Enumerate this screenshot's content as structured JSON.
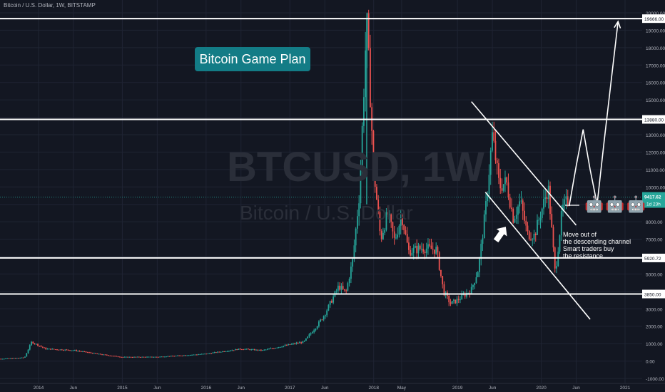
{
  "header": {
    "symbol_title": "Bitcoin / U.S. Dollar, 1W, BITSTAMP"
  },
  "annotation": {
    "game_plan_label": "Bitcoin Game Plan",
    "note_lines": [
      "Move out of",
      "the descending channel",
      "Smart traders buy",
      "the resistance"
    ]
  },
  "watermark": {
    "ticker": "BTCUSD, 1W",
    "name": "Bitcoin / U.S. Dollar"
  },
  "price_labels": {
    "current_price": "9417.62",
    "countdown": "1d 23h"
  },
  "colors": {
    "background": "#131722",
    "up": "#26a69a",
    "down": "#ef5350",
    "lines": "#ffffff",
    "grid": "#1f2433",
    "label_teal": "#137c86"
  },
  "icons": [
    "android-icon",
    "android-icon",
    "android-icon"
  ],
  "chart_data": {
    "type": "candlestick",
    "title": "Bitcoin / U.S. Dollar, 1W, BITSTAMP",
    "ylim": [
      -1000,
      20000
    ],
    "y_ticks": [
      -1000,
      0,
      1000,
      2000,
      3000,
      4000,
      5000,
      6000,
      7000,
      8000,
      9000,
      10000,
      11000,
      12000,
      13000,
      14000,
      15000,
      16000,
      17000,
      18000,
      19000,
      20000
    ],
    "y_tick_labels": [
      "-1000.00",
      "0.00",
      "1000.00",
      "2000.00",
      "3000.00",
      "4000.00",
      "5000.00",
      "6000.00",
      "7000.00",
      "8000.00",
      "9000.00",
      "10000.00",
      "11000.00",
      "12000.00",
      "13000.00",
      "14000.00",
      "15000.00",
      "16000.00",
      "17000.00",
      "18000.00",
      "19000.00",
      "20000.00"
    ],
    "x_ticks": [
      "2014",
      "Jun",
      "2015",
      "Jun",
      "2016",
      "Jun",
      "2017",
      "Jun",
      "2018",
      "May",
      "2019",
      "Jun",
      "2020",
      "Jun",
      "2021"
    ],
    "x_tick_dates": [
      "2014-01",
      "2014-06",
      "2015-01",
      "2015-06",
      "2016-01",
      "2016-06",
      "2017-01",
      "2017-06",
      "2018-01",
      "2018-05",
      "2019-01",
      "2019-06",
      "2020-01",
      "2020-06",
      "2021-01"
    ],
    "horizontal_levels": [
      {
        "value": 19666,
        "label": "19666.00"
      },
      {
        "value": 13880,
        "label": "13880.00"
      },
      {
        "value": 5920.72,
        "label": "5920.72"
      },
      {
        "value": 3850,
        "label": "3850.00"
      }
    ],
    "current_price": 9417.62,
    "price_path": [
      [
        "2013-06",
        100
      ],
      [
        "2013-11",
        200
      ],
      [
        "2013-12",
        1100
      ],
      [
        "2014-02",
        700
      ],
      [
        "2014-06",
        620
      ],
      [
        "2014-10",
        380
      ],
      [
        "2015-01",
        230
      ],
      [
        "2015-06",
        240
      ],
      [
        "2015-11",
        360
      ],
      [
        "2016-01",
        420
      ],
      [
        "2016-06",
        700
      ],
      [
        "2016-09",
        610
      ],
      [
        "2017-01",
        950
      ],
      [
        "2017-03",
        1100
      ],
      [
        "2017-05",
        2100
      ],
      [
        "2017-06",
        2700
      ],
      [
        "2017-08",
        4300
      ],
      [
        "2017-09",
        3900
      ],
      [
        "2017-10",
        5800
      ],
      [
        "2017-11",
        9800
      ],
      [
        "2017-12",
        19666
      ],
      [
        "2018-01",
        11000
      ],
      [
        "2018-02",
        7000
      ],
      [
        "2018-03",
        8500
      ],
      [
        "2018-04",
        6900
      ],
      [
        "2018-05",
        8400
      ],
      [
        "2018-06",
        6300
      ],
      [
        "2018-08",
        6500
      ],
      [
        "2018-10",
        6400
      ],
      [
        "2018-11",
        4000
      ],
      [
        "2018-12",
        3300
      ],
      [
        "2019-01",
        3500
      ],
      [
        "2019-03",
        4100
      ],
      [
        "2019-04",
        5300
      ],
      [
        "2019-05",
        8600
      ],
      [
        "2019-06",
        13000
      ],
      [
        "2019-07",
        10000
      ],
      [
        "2019-08",
        10300
      ],
      [
        "2019-09",
        8200
      ],
      [
        "2019-10",
        9200
      ],
      [
        "2019-11",
        7300
      ],
      [
        "2019-12",
        7200
      ],
      [
        "2020-02",
        10000
      ],
      [
        "2020-03",
        5000
      ],
      [
        "2020-04",
        8700
      ],
      [
        "2020-05",
        9417.62
      ]
    ],
    "upper_channel": [
      [
        "2019-03",
        14900
      ],
      [
        "2020-06",
        7800
      ]
    ],
    "lower_channel": [
      [
        "2019-05",
        9700
      ],
      [
        "2020-08",
        2400
      ]
    ],
    "projection_path": [
      [
        "2020-05",
        8900
      ],
      [
        "2020-06",
        11200
      ],
      [
        "2020-07",
        13300
      ],
      [
        "2020-08",
        11000
      ],
      [
        "2020-09",
        9000
      ],
      [
        "2020-10",
        12600
      ],
      [
        "2020-12",
        19500
      ]
    ]
  }
}
